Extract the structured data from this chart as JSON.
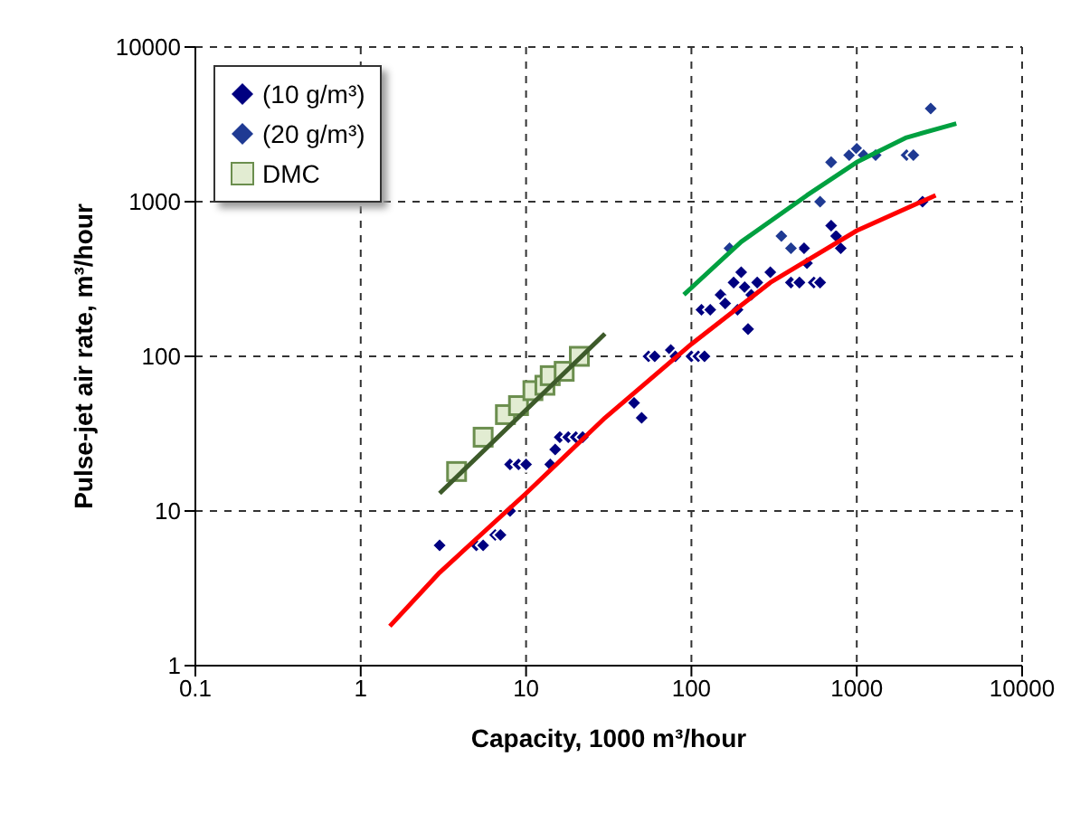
{
  "chart_data": {
    "type": "scatter",
    "xlabel": "Capacity, 1000 m³/hour",
    "ylabel": "Pulse-jet air rate, m³/hour",
    "log": "xy",
    "xlim": [
      0.1,
      10000
    ],
    "ylim": [
      1,
      10000
    ],
    "xticks": [
      0.1,
      1,
      10,
      100,
      1000,
      10000
    ],
    "yticks": [
      1,
      10,
      100,
      1000,
      10000
    ],
    "grid": true,
    "legend": "top left",
    "series": [
      {
        "name": "(10 g/m³)",
        "color": "#000080",
        "marker": "diamond",
        "x": [
          3,
          5,
          5.5,
          6.5,
          7,
          8,
          8,
          9,
          10,
          14,
          15,
          16,
          18,
          20,
          22,
          45,
          50,
          55,
          60,
          75,
          80,
          100,
          110,
          115,
          120,
          130,
          150,
          160,
          180,
          190,
          200,
          210,
          220,
          230,
          250,
          300,
          400,
          450,
          480,
          500,
          550,
          600,
          700,
          750,
          800,
          2500
        ],
        "values": [
          6,
          6,
          6,
          7,
          7,
          10,
          20,
          20,
          20,
          20,
          25,
          30,
          30,
          30,
          30,
          50,
          40,
          100,
          100,
          110,
          100,
          100,
          100,
          200,
          100,
          200,
          250,
          220,
          300,
          200,
          350,
          280,
          150,
          250,
          300,
          350,
          300,
          300,
          500,
          400,
          300,
          300,
          700,
          600,
          500,
          1000
        ]
      },
      {
        "name": "(20 g/m³)",
        "color": "#1f3a93",
        "marker": "diamond",
        "x": [
          170,
          350,
          400,
          600,
          700,
          900,
          1000,
          1100,
          1300,
          2000,
          2200,
          2800
        ],
        "values": [
          500,
          600,
          500,
          1000,
          1800,
          2000,
          2200,
          2000,
          2000,
          2000,
          2000,
          4000
        ]
      },
      {
        "name": "DMC",
        "color": "#6b8e4e",
        "marker": "square",
        "x": [
          3.8,
          5.5,
          7.5,
          9,
          11,
          13,
          14,
          17,
          21
        ],
        "values": [
          18,
          30,
          42,
          48,
          60,
          65,
          75,
          80,
          100
        ]
      },
      {
        "type": "line",
        "color": "#ff0000",
        "marker": "none",
        "x": [
          1.5,
          3,
          10,
          30,
          100,
          300,
          1000,
          3000
        ],
        "values": [
          1.8,
          4,
          13,
          40,
          120,
          300,
          650,
          1100
        ]
      },
      {
        "type": "line",
        "color": "#00a040",
        "marker": "none",
        "x": [
          90,
          200,
          500,
          1000,
          2000,
          4000
        ],
        "values": [
          250,
          550,
          1100,
          1800,
          2600,
          3200
        ]
      },
      {
        "type": "line",
        "color": "#3d5a2a",
        "marker": "none",
        "x": [
          3,
          30
        ],
        "values": [
          13,
          140
        ]
      }
    ]
  }
}
